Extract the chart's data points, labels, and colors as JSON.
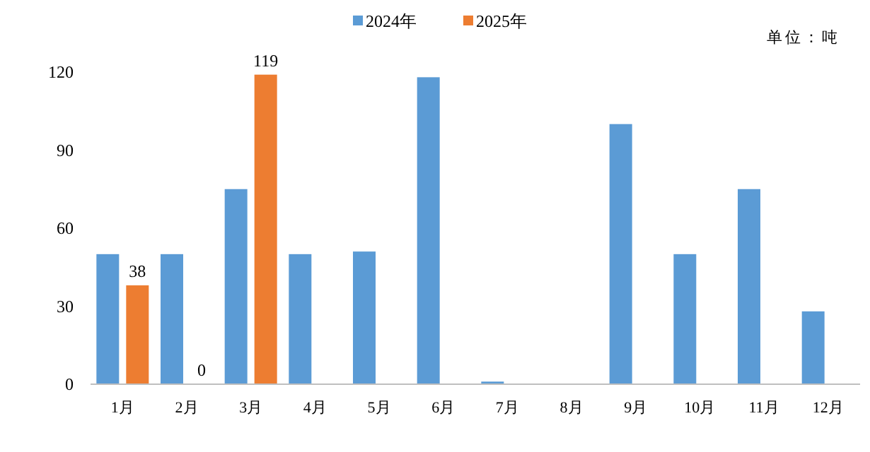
{
  "chart_data": {
    "type": "bar",
    "categories": [
      "1月",
      "2月",
      "3月",
      "4月",
      "5月",
      "6月",
      "7月",
      "8月",
      "9月",
      "10月",
      "11月",
      "12月"
    ],
    "series": [
      {
        "name": "2024年",
        "color": "#5b9bd5",
        "values": [
          50,
          50,
          75,
          50,
          51,
          118,
          1,
          0,
          100,
          50,
          75,
          28
        ]
      },
      {
        "name": "2025年",
        "color": "#ed7d31",
        "values": [
          38,
          0,
          119,
          null,
          null,
          null,
          null,
          null,
          null,
          null,
          null,
          null
        ],
        "value_labels": [
          "38",
          "0",
          "119",
          null,
          null,
          null,
          null,
          null,
          null,
          null,
          null,
          null
        ]
      }
    ],
    "ylim": [
      0,
      120
    ],
    "yticks": [
      0,
      30,
      60,
      90,
      120
    ],
    "legend": "top",
    "grid": false,
    "annotations": [
      "单位：吨"
    ]
  }
}
